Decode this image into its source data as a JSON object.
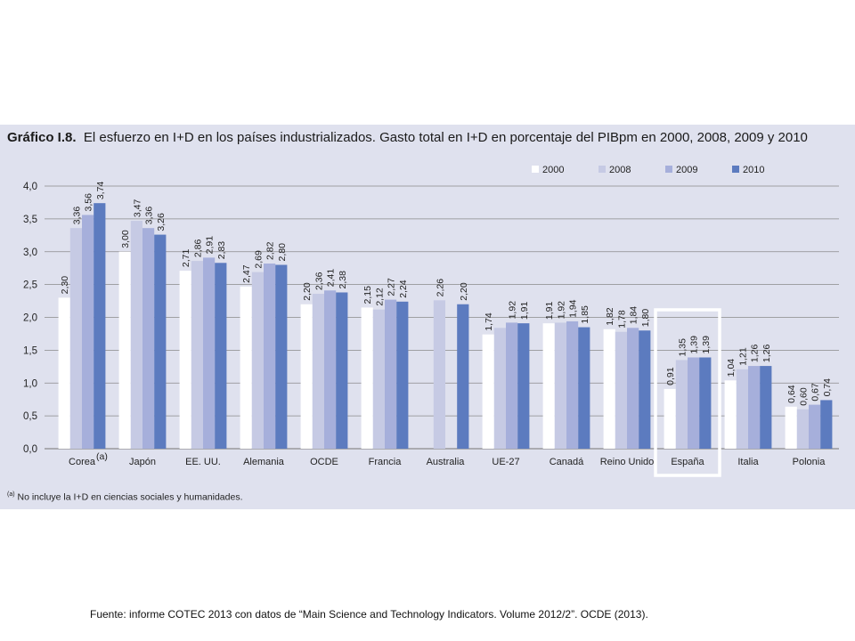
{
  "title": {
    "prefix": "Gráfico I.8.",
    "text": "El esfuerzo en I+D en los países industrializados. Gasto total en I+D en porcentaje del PIBpm en 2000, 2008, 2009 y 2010"
  },
  "footnote": {
    "marker": "(a)",
    "text": "No incluye la I+D en ciencias sociales y humanidades."
  },
  "source": "Fuente: informe COTEC 2013  con datos de “Main Science and Technology Indicators. Volume 2012/2”. OCDE (2013).",
  "colors": {
    "panel": "#dfe1ee",
    "grid": "#8a8a8a",
    "highlight": "#ffffff"
  },
  "chart_data": {
    "type": "bar",
    "title": "El esfuerzo en I+D en los países industrializados. Gasto total en I+D en porcentaje del PIBpm en 2000, 2008, 2009 y 2010",
    "xlabel": "",
    "ylabel": "",
    "ylim": [
      0,
      4
    ],
    "grid": true,
    "legend_position": "top-right",
    "highlighted_category": "España",
    "yticks": [
      "0,0",
      "0,5",
      "1,0",
      "1,5",
      "2,0",
      "2,5",
      "3,0",
      "3,5",
      "4,0"
    ],
    "categories": [
      "Corea",
      "Japón",
      "EE. UU.",
      "Alemania",
      "OCDE",
      "Francia",
      "Australia",
      "UE-27",
      "Canadá",
      "Reino Unido",
      "España",
      "Italia",
      "Polonia"
    ],
    "category_superscripts": {
      "Corea": "(a)"
    },
    "series": [
      {
        "name": "2000",
        "color": "#ffffff",
        "values": [
          2.3,
          3.0,
          2.71,
          2.47,
          2.2,
          2.15,
          null,
          1.74,
          1.91,
          1.82,
          0.91,
          1.04,
          0.64
        ],
        "labels": [
          "2,30",
          "3,00",
          "2,71",
          "2,47",
          "2,20",
          "2,15",
          "",
          "1,74",
          "1,91",
          "1,82",
          "0,91",
          "1,04",
          "0,64"
        ]
      },
      {
        "name": "2008",
        "color": "#c6cae4",
        "values": [
          3.36,
          3.47,
          2.86,
          2.69,
          2.36,
          2.12,
          2.26,
          1.84,
          1.92,
          1.78,
          1.35,
          1.21,
          0.6
        ],
        "labels": [
          "3,36",
          "3,47",
          "2,86",
          "2,69",
          "2,36",
          "2,12",
          "2,26",
          "",
          "1,92",
          "1,78",
          "1,35",
          "1,21",
          "0,60"
        ]
      },
      {
        "name": "2009",
        "color": "#a6afdb",
        "values": [
          3.56,
          3.36,
          2.91,
          2.82,
          2.41,
          2.27,
          null,
          1.92,
          1.94,
          1.84,
          1.39,
          1.26,
          0.67
        ],
        "labels": [
          "3,56",
          "3,36",
          "2,91",
          "2,82",
          "2,41",
          "2,27",
          "",
          "1,92",
          "1,94",
          "1,84",
          "1,39",
          "1,26",
          "0,67"
        ]
      },
      {
        "name": "2010",
        "color": "#5c7bbf",
        "values": [
          3.74,
          3.26,
          2.83,
          2.8,
          2.38,
          2.24,
          2.2,
          1.91,
          1.85,
          1.8,
          1.39,
          1.26,
          0.74
        ],
        "labels": [
          "3,74",
          "3,26",
          "2,83",
          "2,80",
          "2,38",
          "2,24",
          "2,20",
          "1,91",
          "1,85",
          "1,80",
          "1,39",
          "1,26",
          "0,74"
        ]
      }
    ]
  }
}
